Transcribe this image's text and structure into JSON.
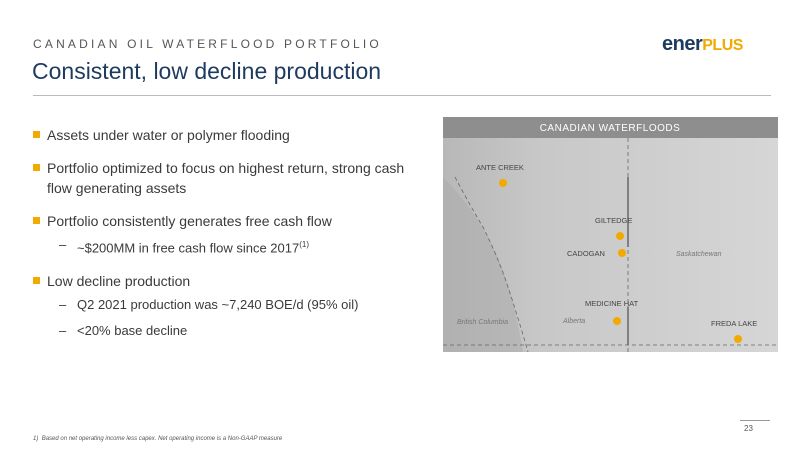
{
  "header": {
    "kicker": "CANADIAN OIL WATERFLOOD PORTFOLIO",
    "title": "Consistent, low decline production",
    "logo": {
      "part1": "ener",
      "part2": "PLUS"
    }
  },
  "bullets": [
    {
      "text": "Assets under water or polymer flooding",
      "subs": []
    },
    {
      "text": "Portfolio optimized to focus on highest return, strong cash flow generating assets",
      "subs": []
    },
    {
      "text": "Portfolio consistently generates free cash flow",
      "subs": [
        {
          "text": "~$200MM in free cash flow since 2017",
          "sup": "(1)"
        }
      ]
    },
    {
      "text": "Low decline production",
      "subs": [
        {
          "text": "Q2 2021 production was ~7,240 BOE/d (95% oil)"
        },
        {
          "text": "<20% base decline"
        }
      ]
    }
  ],
  "map": {
    "title": "CANADIAN WATERFLOODS",
    "sites": [
      "ANTE CREEK",
      "GILTEDGE",
      "CADOGAN",
      "MEDICINE HAT",
      "FREDA LAKE"
    ],
    "regions": [
      "Saskatchewan",
      "Alberta",
      "British Columbia"
    ]
  },
  "footnote": {
    "marker": "1)",
    "text": "Based on net operating income less capex. Net operating income is a Non-GAAP measure"
  },
  "page_number": "23"
}
